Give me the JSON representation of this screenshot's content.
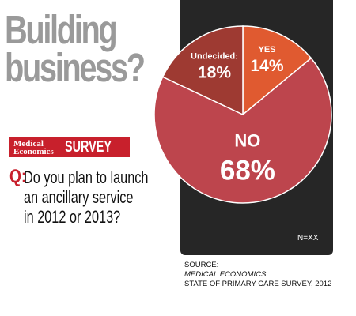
{
  "headline": {
    "line1": "Building",
    "line2": "business?"
  },
  "badge": {
    "logo_line1": "Medical",
    "logo_line2": "Economics",
    "label": "SURVEY"
  },
  "question": {
    "marker": "Q:",
    "lines": [
      "Do you plan to launch",
      "an ancillary service",
      "in 2012 or 2013?"
    ]
  },
  "chart_data": {
    "type": "pie",
    "slices": [
      {
        "label": "YES",
        "value": 14,
        "display": "14%",
        "color": "#e05a30"
      },
      {
        "label": "NO",
        "value": 68,
        "display": "68%",
        "color": "#bd454d"
      },
      {
        "label": "Undecided:",
        "value": 18,
        "display": "18%",
        "color": "#9e3a32"
      }
    ],
    "note": "N=XX"
  },
  "source": {
    "prefix": "SOURCE: ",
    "publication": "MEDICAL ECONOMICS",
    "line2": "STATE OF PRIMARY CARE SURVEY, 2012"
  }
}
